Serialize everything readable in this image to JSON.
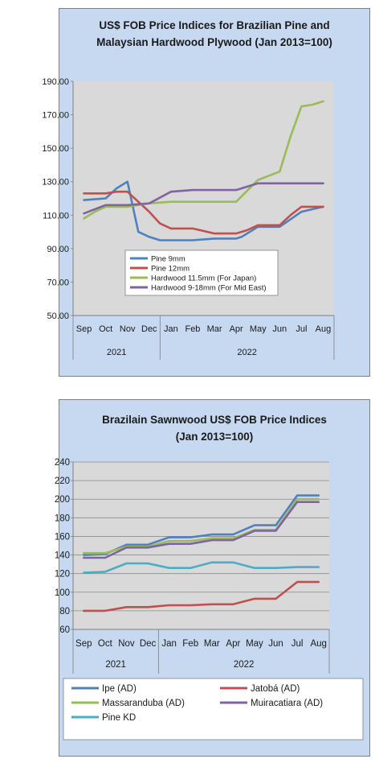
{
  "chart_data": [
    {
      "type": "line",
      "title_line1": "US$ FOB Price Indices for Brazilian  Pine and",
      "title_line2": "Malaysian Hardwood Plywood (Jan 2013=100)",
      "ylim": [
        50,
        190
      ],
      "yticks": [
        "190.00",
        "170.00",
        "150.00",
        "130.00",
        "110.00",
        "90.00",
        "70.00",
        "50.00"
      ],
      "categories": [
        "Sep",
        "Oct",
        "Nov",
        "Dec",
        "Jan",
        "Feb",
        "Mar",
        "Apr",
        "May",
        "Jun",
        "Jul",
        "Aug"
      ],
      "year_groups": [
        {
          "label": "2021",
          "span": 4
        },
        {
          "label": "2022",
          "span": 8
        }
      ],
      "grid": false,
      "legend_position": "center-bottom",
      "series": [
        {
          "name": "Pine 9mm",
          "color": "#4f81bd",
          "x": [
            0,
            1,
            1.5,
            2,
            2.5,
            3,
            3.5,
            4,
            5,
            6,
            7,
            7.25,
            7.5,
            8,
            9,
            10,
            11
          ],
          "values": [
            119,
            120,
            126,
            130,
            100,
            97,
            95,
            95,
            95,
            96,
            96,
            97,
            99,
            103,
            103,
            112,
            115
          ]
        },
        {
          "name": "Pine 12mm",
          "color": "#c0504d",
          "x": [
            0,
            1,
            1.5,
            2,
            2.5,
            3,
            3.5,
            4,
            5,
            6,
            7,
            7.5,
            8,
            9,
            9.5,
            10,
            11
          ],
          "values": [
            123,
            123,
            124,
            124,
            118,
            112,
            105,
            102,
            102,
            99,
            99,
            101,
            104,
            104,
            110,
            115,
            115
          ]
        },
        {
          "name": "Hardwood 11.5mm (For Japan)",
          "color": "#9bbb59",
          "x": [
            0,
            0.5,
            1,
            2,
            3,
            4,
            5,
            6,
            7,
            8,
            9,
            9.5,
            10,
            10.5,
            11
          ],
          "values": [
            108,
            112,
            115,
            115,
            117,
            118,
            118,
            118,
            118,
            131,
            136,
            157,
            175,
            176,
            178
          ]
        },
        {
          "name": "Hardwood 9-18mm (For Mid East)",
          "color": "#8064a2",
          "x": [
            0,
            1,
            2,
            3,
            4,
            5,
            6,
            7,
            8,
            9,
            10,
            11
          ],
          "values": [
            111,
            116,
            116,
            117,
            124,
            125,
            125,
            125,
            129,
            129,
            129,
            129
          ]
        }
      ]
    },
    {
      "type": "line",
      "title_line1": "Brazilain Sawnwood US$ FOB Price Indices",
      "title_line2": "(Jan 2013=100)",
      "ylim": [
        60,
        240
      ],
      "yticks": [
        "240",
        "220",
        "200",
        "180",
        "160",
        "140",
        "120",
        "100",
        "80",
        "60"
      ],
      "categories": [
        "Sep",
        "Oct",
        "Nov",
        "Dec",
        "Jan",
        "Feb",
        "Mar",
        "Apr",
        "May",
        "Jun",
        "Jul",
        "Aug"
      ],
      "year_groups": [
        {
          "label": "2021",
          "span": 4
        },
        {
          "label": "2022",
          "span": 8
        }
      ],
      "grid": true,
      "legend_position": "bottom",
      "series": [
        {
          "name": "Ipe (AD)",
          "color": "#4f81bd",
          "x": [
            0,
            1,
            2,
            3,
            4,
            5,
            6,
            7,
            8,
            9,
            10,
            11
          ],
          "values": [
            140,
            141,
            151,
            151,
            159,
            159,
            162,
            162,
            172,
            172,
            204,
            204
          ]
        },
        {
          "name": "Jatobá (AD)",
          "color": "#c0504d",
          "x": [
            0,
            1,
            2,
            3,
            4,
            5,
            6,
            7,
            8,
            9,
            10,
            11
          ],
          "values": [
            80,
            80,
            84,
            84,
            86,
            86,
            87,
            87,
            93,
            93,
            111,
            111
          ]
        },
        {
          "name": "Massaranduba (AD)",
          "color": "#9bbb59",
          "x": [
            0,
            1,
            2,
            3,
            4,
            5,
            6,
            7,
            8,
            9,
            10,
            11
          ],
          "values": [
            142,
            142,
            149,
            149,
            155,
            155,
            158,
            158,
            167,
            167,
            200,
            200
          ]
        },
        {
          "name": "Muiracatiara (AD)",
          "color": "#8064a2",
          "x": [
            0,
            1,
            2,
            3,
            4,
            5,
            6,
            7,
            8,
            9,
            10,
            11
          ],
          "values": [
            137,
            137,
            148,
            148,
            152,
            152,
            156,
            156,
            166,
            166,
            197,
            197
          ]
        },
        {
          "name": "Pine KD",
          "color": "#4bacc6",
          "x": [
            0,
            1,
            2,
            3,
            4,
            5,
            6,
            7,
            8,
            9,
            10,
            11
          ],
          "values": [
            121,
            122,
            131,
            131,
            126,
            126,
            132,
            132,
            126,
            126,
            127,
            127
          ]
        }
      ]
    }
  ]
}
